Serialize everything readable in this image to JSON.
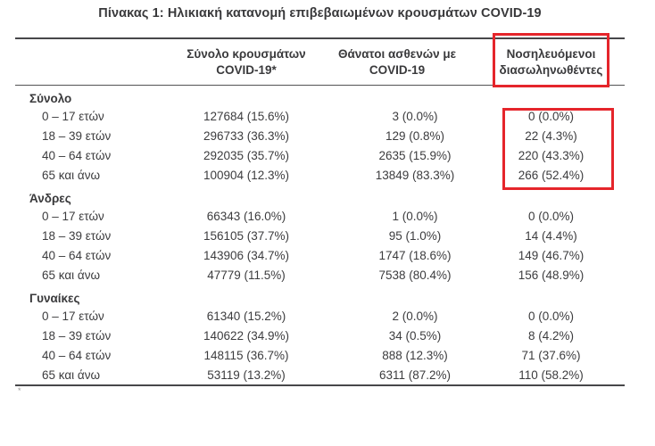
{
  "title": "Πίνακας 1: Ηλικιακή κατανομή επιβεβαιωμένων κρουσμάτων COVID-19",
  "table": {
    "columns": [
      {
        "line1": "Σύνολο κρουσμάτων",
        "line2": "COVID-19*"
      },
      {
        "line1": "Θάνατοι ασθενών με",
        "line2": "COVID-19"
      },
      {
        "line1": "Νοσηλευόμενοι",
        "line2": "διασωληνωθέντες"
      }
    ],
    "sections": [
      {
        "label": "Σύνολο",
        "rows": [
          {
            "age": "0 – 17 ετών",
            "cases": "127684 (15.6%)",
            "deaths": "3 (0.0%)",
            "intubated": "0 (0.0%)"
          },
          {
            "age": "18 – 39 ετών",
            "cases": "296733 (36.3%)",
            "deaths": "129 (0.8%)",
            "intubated": "22 (4.3%)"
          },
          {
            "age": "40 – 64 ετών",
            "cases": "292035 (35.7%)",
            "deaths": "2635 (15.9%)",
            "intubated": "220 (43.3%)"
          },
          {
            "age": "65 και άνω",
            "cases": "100904 (12.3%)",
            "deaths": "13849 (83.3%)",
            "intubated": "266 (52.4%)"
          }
        ]
      },
      {
        "label": "Άνδρες",
        "rows": [
          {
            "age": "0 – 17 ετών",
            "cases": "66343 (16.0%)",
            "deaths": "1 (0.0%)",
            "intubated": "0 (0.0%)"
          },
          {
            "age": "18 – 39 ετών",
            "cases": "156105 (37.7%)",
            "deaths": "95 (1.0%)",
            "intubated": "14 (4.4%)"
          },
          {
            "age": "40 – 64 ετών",
            "cases": "143906 (34.7%)",
            "deaths": "1747 (18.6%)",
            "intubated": "149 (46.7%)"
          },
          {
            "age": "65 και άνω",
            "cases": "47779 (11.5%)",
            "deaths": "7538 (80.4%)",
            "intubated": "156 (48.9%)"
          }
        ]
      },
      {
        "label": "Γυναίκες",
        "rows": [
          {
            "age": "0 – 17 ετών",
            "cases": "61340 (15.2%)",
            "deaths": "2 (0.0%)",
            "intubated": "0 (0.0%)"
          },
          {
            "age": "18 – 39 ετών",
            "cases": "140622 (34.9%)",
            "deaths": "34 (0.5%)",
            "intubated": "8 (4.2%)"
          },
          {
            "age": "40 – 64 ετών",
            "cases": "148115 (36.7%)",
            "deaths": "888 (12.3%)",
            "intubated": "71 (37.6%)"
          },
          {
            "age": "65 και άνω",
            "cases": "53119 (13.2%)",
            "deaths": "6311 (87.2%)",
            "intubated": "110 (58.2%)"
          }
        ]
      }
    ]
  },
  "highlight": {
    "color": "#e5252b",
    "highlighted_column": "Νοσηλευόμενοι διασωληνωθέντες"
  },
  "footnote_marker": "*",
  "colors": {
    "text": "#3c3c3e",
    "rule": "#47474a"
  }
}
